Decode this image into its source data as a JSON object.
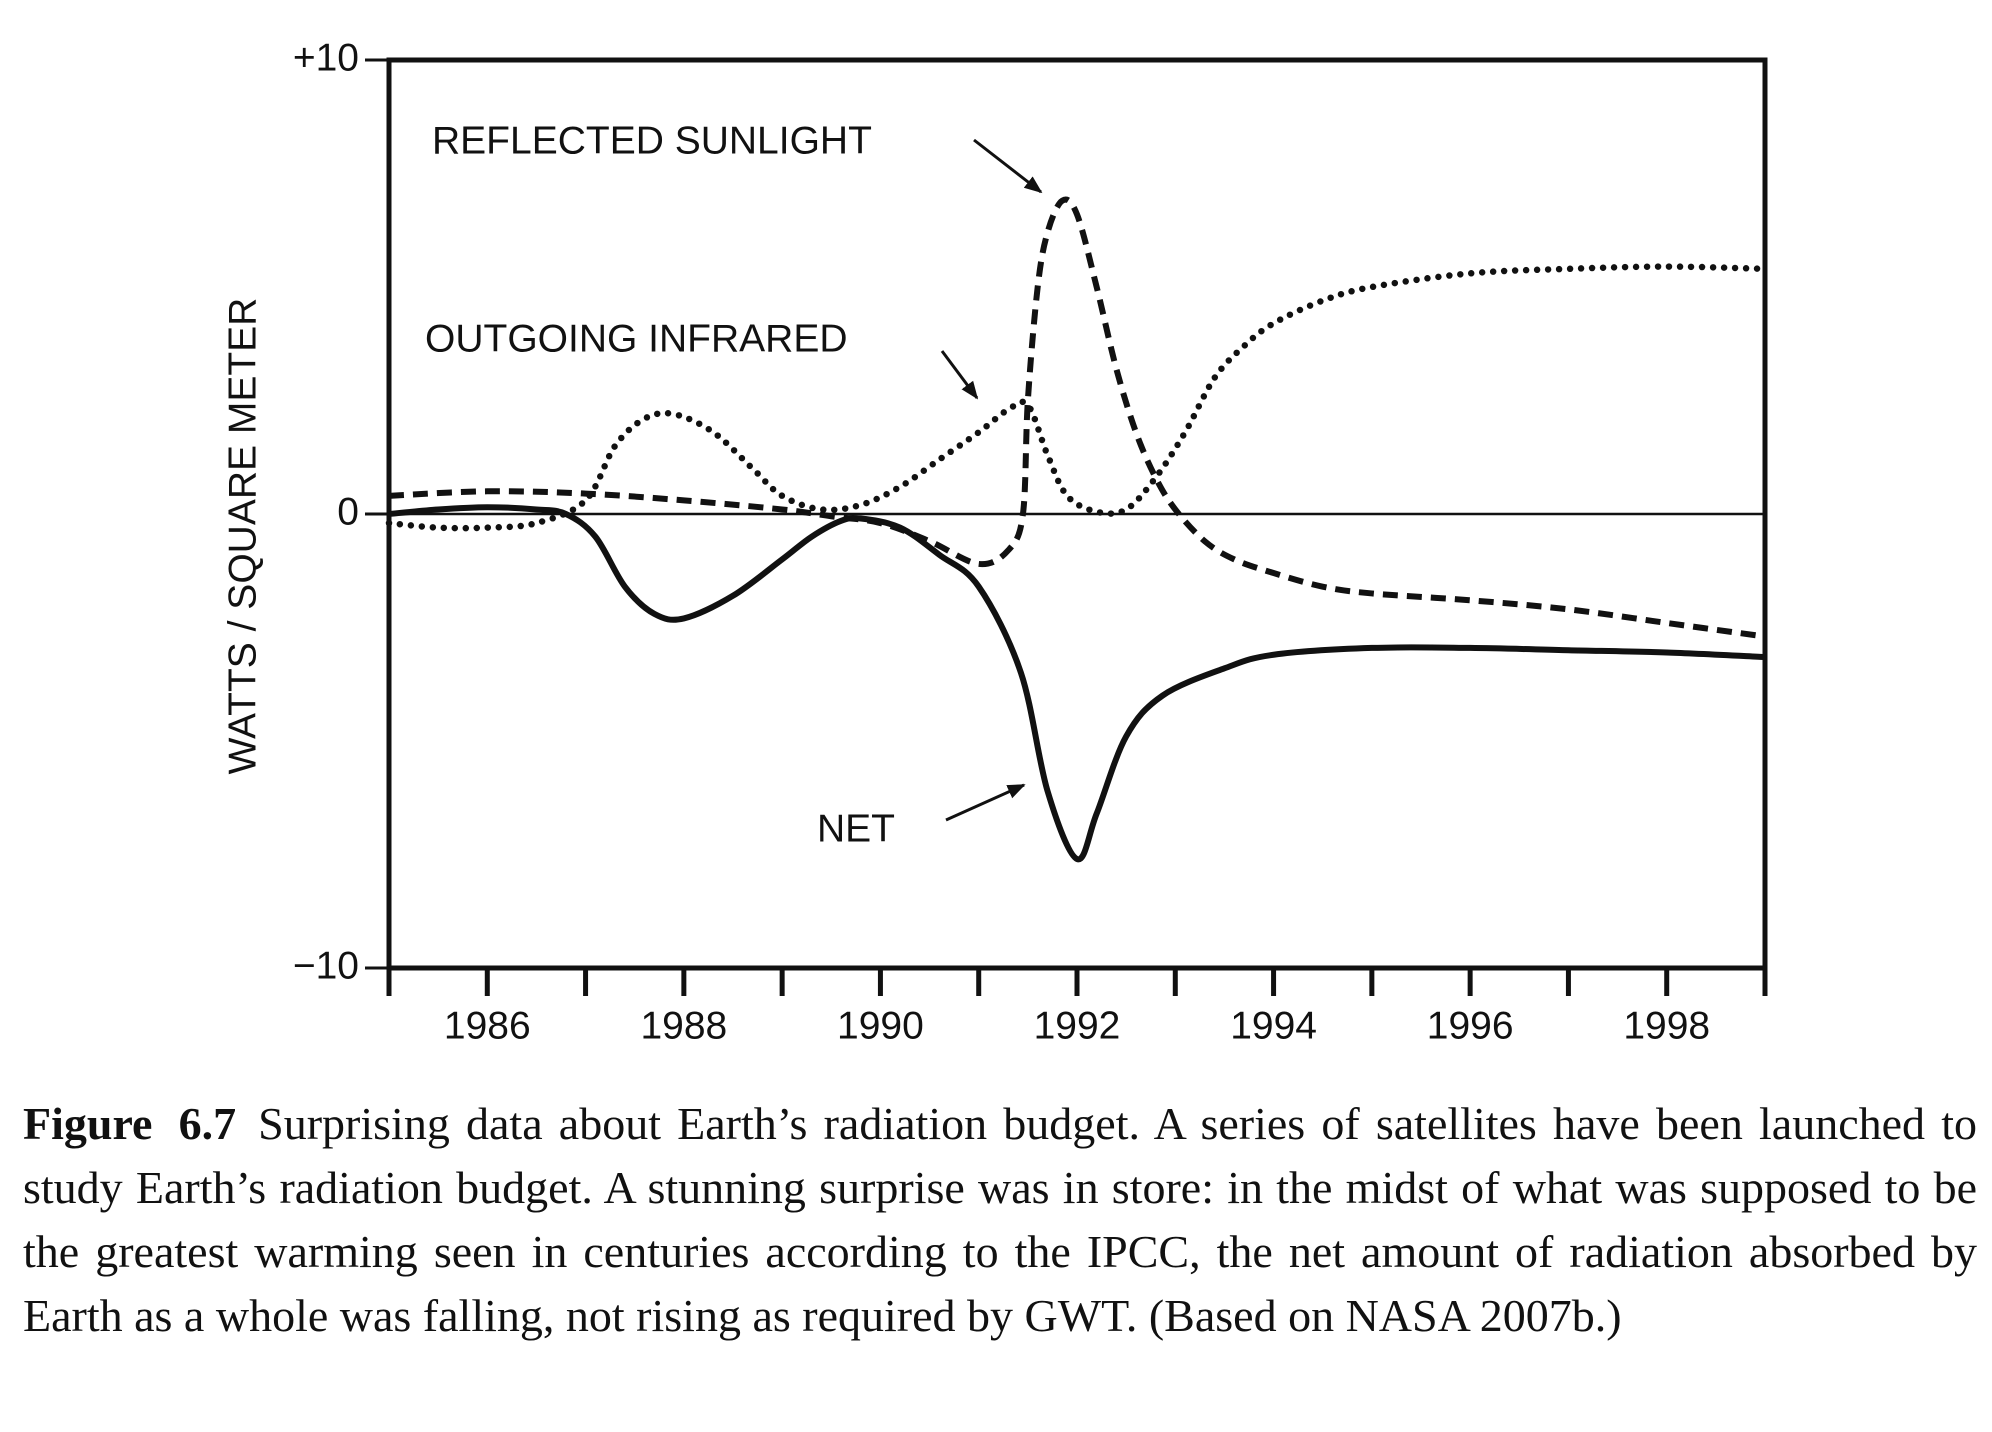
{
  "chart_data": {
    "type": "line",
    "ylabel": "WATTS / SQUARE METER",
    "xlim": [
      1985,
      1999
    ],
    "xticks": [
      1986,
      1988,
      1990,
      1992,
      1994,
      1996,
      1998
    ],
    "xminorticks": [
      1985,
      1987,
      1989,
      1991,
      1993,
      1995,
      1997,
      1999
    ],
    "ylim": [
      -10,
      10
    ],
    "yticks": [
      {
        "value": 10,
        "label": "+10"
      },
      0,
      {
        "value": -10,
        "label": "−10"
      }
    ],
    "zero_line": true,
    "series": [
      {
        "name": "REFLECTED SUNLIGHT",
        "color": "#111111",
        "style": "dashed",
        "x": [
          1985,
          1986,
          1987,
          1988,
          1989,
          1989.5,
          1990,
          1990.5,
          1991,
          1991.3,
          1991.45,
          1991.5,
          1991.6,
          1991.7,
          1991.85,
          1992,
          1992.2,
          1992.4,
          1992.6,
          1992.8,
          1993,
          1993.3,
          1993.6,
          1994,
          1994.5,
          1995,
          1996,
          1997,
          1998,
          1999
        ],
        "values": [
          0.4,
          0.5,
          0.45,
          0.3,
          0.1,
          -0.05,
          -0.2,
          -0.6,
          -1.1,
          -0.8,
          0,
          2.5,
          5.0,
          6.2,
          6.9,
          6.6,
          5.0,
          3.2,
          1.8,
          0.8,
          0.1,
          -0.6,
          -1.0,
          -1.3,
          -1.6,
          -1.75,
          -1.9,
          -2.1,
          -2.4,
          -2.7
        ]
      },
      {
        "name": "OUTGOING INFRARED",
        "color": "#111111",
        "style": "dotted",
        "x": [
          1985,
          1985.5,
          1986,
          1986.5,
          1987,
          1987.3,
          1987.6,
          1987.9,
          1988.3,
          1988.7,
          1989,
          1989.4,
          1989.8,
          1990.2,
          1990.6,
          1991,
          1991.3,
          1991.5,
          1991.7,
          1991.9,
          1992.2,
          1992.5,
          1992.8,
          1993.1,
          1993.4,
          1993.7,
          1994,
          1994.5,
          1995,
          1996,
          1997,
          1998,
          1999
        ],
        "values": [
          -0.2,
          -0.3,
          -0.3,
          -0.2,
          0.3,
          1.5,
          2.1,
          2.2,
          1.8,
          1.0,
          0.4,
          0.1,
          0.2,
          0.6,
          1.2,
          1.8,
          2.3,
          2.4,
          1.3,
          0.4,
          0.05,
          0.1,
          0.8,
          1.8,
          3.0,
          3.7,
          4.2,
          4.7,
          5.0,
          5.3,
          5.4,
          5.45,
          5.4
        ]
      },
      {
        "name": "NET",
        "color": "#111111",
        "style": "solid",
        "x": [
          1985,
          1985.5,
          1986,
          1986.5,
          1986.8,
          1987.1,
          1987.4,
          1987.7,
          1988,
          1988.5,
          1989,
          1989.3,
          1989.6,
          1989.8,
          1990.2,
          1990.6,
          1991,
          1991.43,
          1991.7,
          1992,
          1992.2,
          1992.5,
          1992.87,
          1993.5,
          1994,
          1995,
          1996,
          1997,
          1998,
          1999
        ],
        "values": [
          0,
          0.1,
          0.15,
          0.1,
          0,
          -0.5,
          -1.6,
          -2.2,
          -2.3,
          -1.8,
          -1.0,
          -0.5,
          -0.15,
          -0.1,
          -0.3,
          -0.9,
          -1.6,
          -3.5,
          -6.1,
          -7.6,
          -6.6,
          -4.9,
          -4.0,
          -3.4,
          -3.1,
          -2.95,
          -2.95,
          -3.0,
          -3.05,
          -3.15
        ]
      }
    ]
  },
  "caption": {
    "label": "Figure 6.7",
    "text": "Surprising data about Earth’s radiation budget. A series of satellites have been launched to study Earth’s radiation budget. A stunning surprise was in store: in the midst of what was supposed to be the greatest warming seen in centuries according to the IPCC, the net amount of radiation absorbed by Earth as a whole was falling, not rising as required by GWT. (Based on NASA 2007b.)"
  }
}
